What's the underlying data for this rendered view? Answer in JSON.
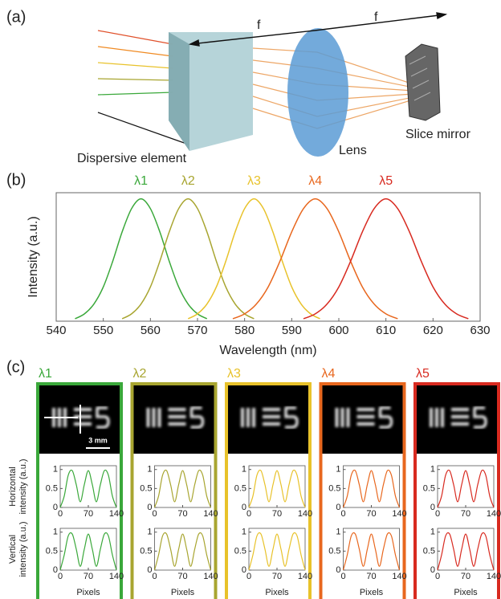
{
  "panel_a": {
    "label": "(a)",
    "focal_1": "f",
    "focal_2": "f",
    "element_label": "Dispersive element",
    "lens_label": "Lens",
    "mirror_label": "Slice mirror"
  },
  "chart_data": {
    "type": "line",
    "label": "(b)",
    "x_label": "Wavelength (nm)",
    "y_label": "Intensity (a.u.)",
    "xlim": [
      540,
      630
    ],
    "xticks": [
      540,
      550,
      560,
      570,
      580,
      590,
      600,
      610,
      620,
      630
    ],
    "ylim": [
      0,
      1.05
    ],
    "series": [
      {
        "name": "λ1",
        "color": "#3aa83a",
        "x": [
          544,
          546,
          548,
          550,
          552,
          554,
          556,
          558,
          560,
          562,
          564,
          566,
          568,
          570,
          572
        ],
        "values": [
          0.02,
          0.06,
          0.14,
          0.28,
          0.49,
          0.73,
          0.92,
          1,
          0.92,
          0.73,
          0.49,
          0.28,
          0.14,
          0.06,
          0.02
        ]
      },
      {
        "name": "λ2",
        "color": "#a8a530",
        "x": [
          554,
          556,
          558,
          560,
          562,
          564,
          566,
          568,
          570,
          572,
          574,
          576,
          578,
          580,
          582
        ],
        "values": [
          0.02,
          0.06,
          0.14,
          0.28,
          0.49,
          0.73,
          0.92,
          1,
          0.92,
          0.73,
          0.49,
          0.28,
          0.14,
          0.06,
          0.02
        ]
      },
      {
        "name": "λ3",
        "color": "#e8c22a",
        "x": [
          568,
          570,
          572,
          574,
          576,
          578,
          580,
          582,
          584,
          586,
          588,
          590,
          592,
          594,
          596
        ],
        "values": [
          0.02,
          0.06,
          0.14,
          0.28,
          0.49,
          0.73,
          0.92,
          1,
          0.92,
          0.73,
          0.49,
          0.28,
          0.14,
          0.06,
          0.02
        ]
      },
      {
        "name": "λ4",
        "color": "#e8671e",
        "x": [
          577.5,
          580,
          582.5,
          585,
          587.5,
          590,
          592.5,
          595,
          597.5,
          600,
          602.5,
          605,
          607.5,
          610,
          612.5
        ],
        "values": [
          0.02,
          0.06,
          0.14,
          0.28,
          0.49,
          0.73,
          0.92,
          1,
          0.92,
          0.73,
          0.49,
          0.28,
          0.14,
          0.06,
          0.02
        ]
      },
      {
        "name": "λ5",
        "color": "#d82a20",
        "x": [
          592.5,
          595,
          597.5,
          600,
          602.5,
          605,
          607.5,
          610,
          612.5,
          615,
          617.5,
          620,
          622.5,
          625,
          627.5
        ],
        "values": [
          0.02,
          0.06,
          0.14,
          0.28,
          0.49,
          0.73,
          0.92,
          1,
          0.92,
          0.73,
          0.49,
          0.28,
          0.14,
          0.06,
          0.02
        ]
      }
    ]
  },
  "panel_c": {
    "label": "(c)",
    "scale_bar": "3 mm",
    "x_label": "Pixels",
    "row_labels": [
      [
        "Horizontal",
        "intensity (a.u.)"
      ],
      [
        "Vertical",
        "intensity (a.u.)"
      ]
    ],
    "xlim": [
      0,
      140
    ],
    "xticks": [
      0,
      70,
      140
    ],
    "ylim": [
      0,
      1.1
    ],
    "yticks": [
      0,
      0.5,
      1
    ],
    "x": [
      0,
      10,
      20,
      30,
      40,
      50,
      60,
      70,
      80,
      90,
      100,
      110,
      120,
      130,
      140
    ],
    "panels": [
      {
        "name": "λ1",
        "color": "#3aa83a",
        "horizontal": [
          0,
          0.3,
          0.85,
          0.97,
          0.6,
          0.15,
          0.6,
          0.97,
          0.6,
          0.15,
          0.6,
          0.97,
          0.85,
          0.3,
          0
        ],
        "vertical": [
          0,
          0.4,
          0.9,
          0.95,
          0.55,
          0.1,
          0.55,
          0.95,
          0.55,
          0.1,
          0.55,
          0.95,
          0.9,
          0.4,
          0
        ]
      },
      {
        "name": "λ2",
        "color": "#a8a530",
        "horizontal": [
          0,
          0.3,
          0.85,
          0.97,
          0.6,
          0.15,
          0.6,
          0.97,
          0.6,
          0.15,
          0.6,
          0.97,
          0.85,
          0.3,
          0
        ],
        "vertical": [
          0,
          0.4,
          0.9,
          0.95,
          0.55,
          0.1,
          0.55,
          0.95,
          0.55,
          0.1,
          0.55,
          0.95,
          0.9,
          0.4,
          0
        ]
      },
      {
        "name": "λ3",
        "color": "#e8c22a",
        "horizontal": [
          0,
          0.3,
          0.85,
          0.97,
          0.6,
          0.15,
          0.6,
          0.97,
          0.6,
          0.15,
          0.6,
          0.97,
          0.85,
          0.3,
          0
        ],
        "vertical": [
          0,
          0.4,
          0.9,
          0.95,
          0.55,
          0.1,
          0.55,
          0.95,
          0.55,
          0.1,
          0.55,
          0.95,
          0.9,
          0.4,
          0
        ]
      },
      {
        "name": "λ4",
        "color": "#e8671e",
        "horizontal": [
          0,
          0.3,
          0.85,
          0.97,
          0.6,
          0.15,
          0.6,
          0.97,
          0.6,
          0.15,
          0.6,
          0.97,
          0.85,
          0.3,
          0
        ],
        "vertical": [
          0,
          0.4,
          0.9,
          0.95,
          0.55,
          0.1,
          0.55,
          0.95,
          0.55,
          0.1,
          0.55,
          0.95,
          0.9,
          0.4,
          0
        ]
      },
      {
        "name": "λ5",
        "color": "#d82a20",
        "horizontal": [
          0,
          0.3,
          0.85,
          0.97,
          0.6,
          0.15,
          0.6,
          0.97,
          0.6,
          0.15,
          0.6,
          0.97,
          0.85,
          0.3,
          0
        ],
        "vertical": [
          0,
          0.4,
          0.9,
          0.95,
          0.55,
          0.1,
          0.55,
          0.95,
          0.55,
          0.1,
          0.55,
          0.95,
          0.9,
          0.4,
          0
        ]
      }
    ]
  }
}
